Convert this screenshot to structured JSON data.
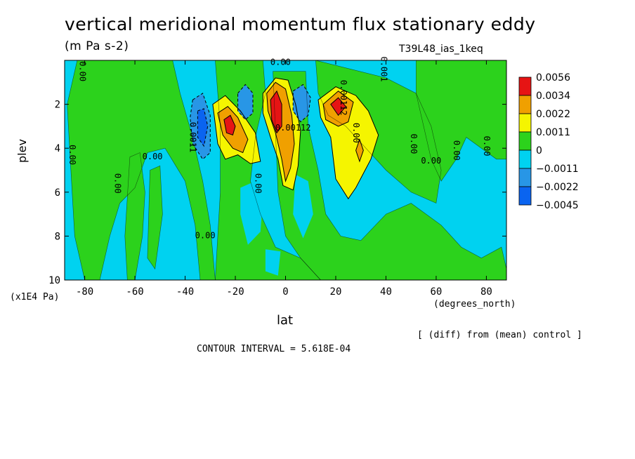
{
  "header": {
    "title": "vertical meridional momentum flux stationary eddy",
    "subtitle": "(m Pa s-2)",
    "run_name": "T39L48_ias_1keq"
  },
  "axes": {
    "ylabel": "plev",
    "xlabel": "lat",
    "y_units": "(x1E4 Pa)",
    "x_units": "(degrees_north)"
  },
  "notes": {
    "diff": "[ (diff) from (mean) control ]",
    "contour_interval": "CONTOUR INTERVAL = 5.618E-04"
  },
  "colors": {
    "c_neg3": "#0a64f0",
    "c_neg2": "#2896e6",
    "c_neg1": "#00d2f0",
    "c_zero": "#2cd21c",
    "c_pos1": "#f5f500",
    "c_pos2": "#f0a000",
    "c_pos3": "#e61414"
  },
  "chart_data": {
    "type": "heatmap",
    "title": "vertical meridional momentum flux stationary eddy",
    "subtitle": "(m Pa s-2)",
    "xlabel": "lat",
    "ylabel": "plev",
    "xlim": [
      -88,
      88
    ],
    "ylim": [
      10,
      0
    ],
    "x_ticks": [
      -80,
      -60,
      -40,
      -20,
      0,
      20,
      40,
      60,
      80
    ],
    "x_tick_labels": [
      "-80",
      "-60",
      "-40",
      "-20",
      "0",
      "20",
      "40",
      "60",
      "80"
    ],
    "y_ticks": [
      2,
      4,
      6,
      8,
      10
    ],
    "y_tick_labels": [
      "2",
      "4",
      "6",
      "8",
      "10"
    ],
    "colorbar": {
      "levels": [
        -0.0045,
        -0.0022,
        -0.0011,
        0,
        0.0011,
        0.0022,
        0.0034,
        0.0056
      ],
      "labels": [
        "0.0056",
        "0.0034",
        "0.0022",
        "0.0011",
        "0",
        "−0.0011",
        "−0.0022",
        "−0.0045"
      ]
    },
    "contour_labels": [
      {
        "text": "0.00",
        "lat": -82,
        "plev": 0.5
      },
      {
        "text": "0.00",
        "lat": -2,
        "plev": 0.2
      },
      {
        "text": "0.001",
        "lat": 38,
        "plev": 0.4
      },
      {
        "text": "0.00112",
        "lat": 22,
        "plev": 1.7
      },
      {
        "text": "0.00112",
        "lat": 3,
        "plev": 3.2
      },
      {
        "text": "0.0011",
        "lat": -38,
        "plev": 3.5
      },
      {
        "text": "0.00",
        "lat": -86,
        "plev": 4.3
      },
      {
        "text": "0.00",
        "lat": -53,
        "plev": 4.5
      },
      {
        "text": "0.00",
        "lat": -68,
        "plev": 5.6
      },
      {
        "text": "0.00",
        "lat": -12,
        "plev": 5.6
      },
      {
        "text": "0.00",
        "lat": -32,
        "plev": 8.1
      },
      {
        "text": "0.00",
        "lat": 27,
        "plev": 3.3
      },
      {
        "text": "0.00",
        "lat": 50,
        "plev": 3.8
      },
      {
        "text": "0.00",
        "lat": 58,
        "plev": 4.7
      },
      {
        "text": "0.00",
        "lat": 67,
        "plev": 4.1
      },
      {
        "text": "0.00",
        "lat": 79,
        "plev": 3.9
      }
    ],
    "extrema": [
      {
        "sign": "pos",
        "lat": -22,
        "plev": 3.0,
        "value": 0.0045
      },
      {
        "sign": "pos",
        "lat": -4,
        "plev": 2.3,
        "value": 0.005
      },
      {
        "sign": "pos",
        "lat": 21,
        "plev": 2.2,
        "value": 0.004
      },
      {
        "sign": "neg",
        "lat": -33,
        "plev": 2.9,
        "value": -0.0035
      },
      {
        "sign": "neg",
        "lat": -16,
        "plev": 2.0,
        "value": -0.0022
      },
      {
        "sign": "neg",
        "lat": 6,
        "plev": 2.0,
        "value": -0.0022
      }
    ]
  }
}
